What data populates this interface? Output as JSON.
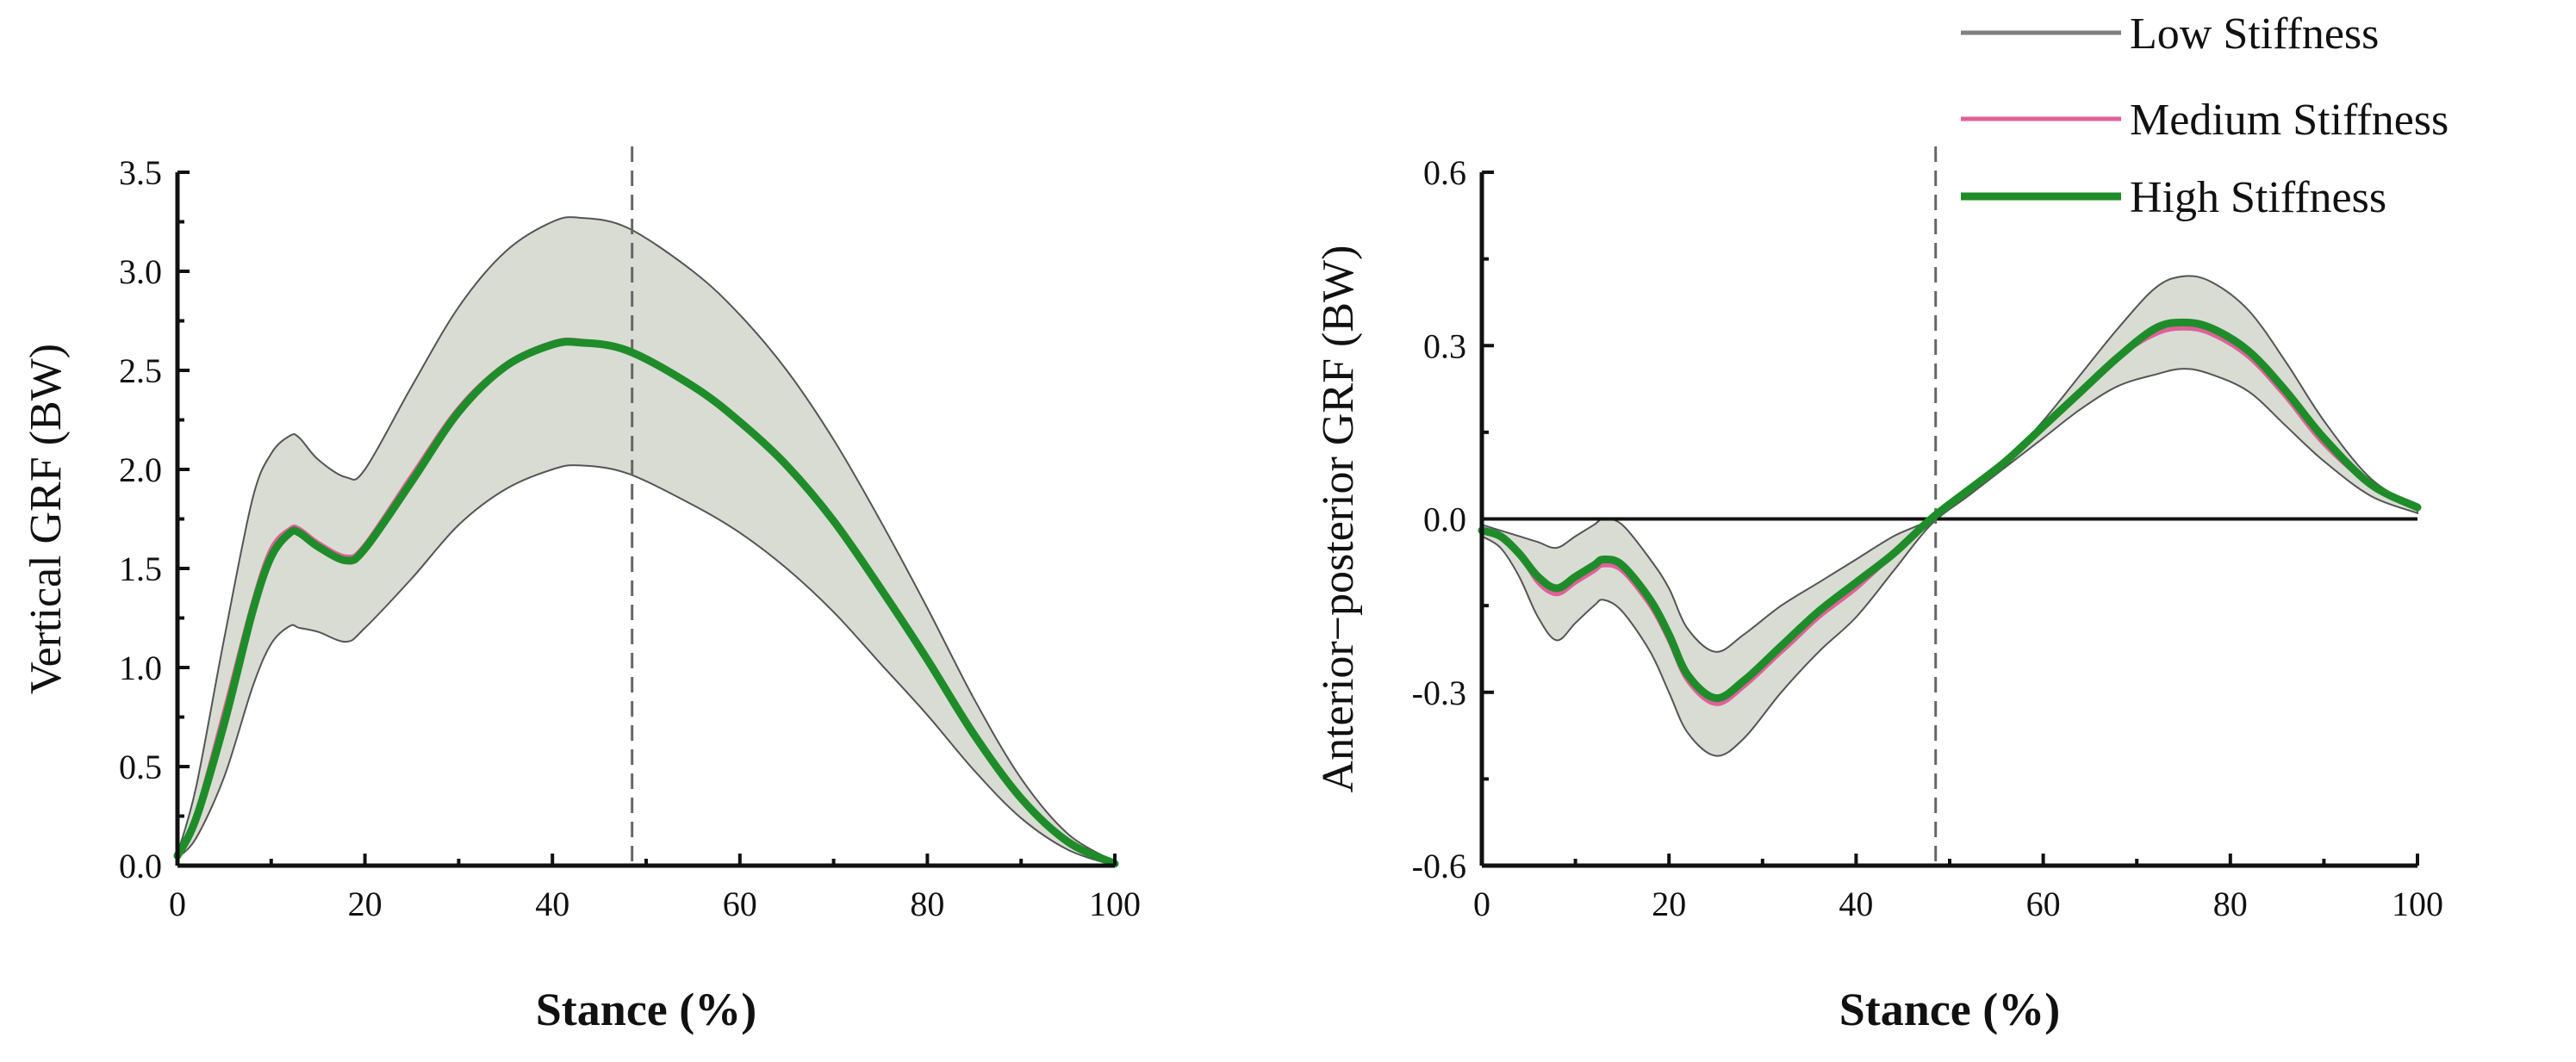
{
  "legend": {
    "items": [
      {
        "label": "Low Stiffness",
        "color": "#7f7f7f"
      },
      {
        "label": "Medium Stiffness",
        "color": "#e0609a"
      },
      {
        "label": "High Stiffness",
        "color": "#1f8c2a"
      }
    ]
  },
  "band_color": "#d9dcd3",
  "chart_data": [
    {
      "type": "line",
      "title": "",
      "xlabel": "Stance (%)",
      "ylabel": "Vertical GRF (BW)",
      "xlim": [
        0,
        100
      ],
      "ylim": [
        0,
        3.5
      ],
      "x_ticks": [
        "0",
        "20",
        "40",
        "60",
        "80",
        "100"
      ],
      "y_ticks": [
        "0.0",
        "0.5",
        "1.0",
        "1.5",
        "2.0",
        "2.5",
        "3.0",
        "3.5"
      ],
      "vline_x": 48.5,
      "x": [
        0,
        2,
        5,
        8,
        10,
        12,
        13,
        15,
        18,
        20,
        25,
        30,
        35,
        40,
        43,
        48,
        55,
        60,
        65,
        70,
        75,
        80,
        85,
        90,
        95,
        100
      ],
      "series": [
        {
          "name": "Low Stiffness",
          "values": [
            0.05,
            0.25,
            0.75,
            1.3,
            1.58,
            1.69,
            1.69,
            1.62,
            1.55,
            1.6,
            1.95,
            2.3,
            2.52,
            2.63,
            2.64,
            2.6,
            2.42,
            2.24,
            2.02,
            1.74,
            1.4,
            1.04,
            0.66,
            0.34,
            0.12,
            0.01
          ]
        },
        {
          "name": "Medium Stiffness",
          "values": [
            0.05,
            0.26,
            0.78,
            1.32,
            1.6,
            1.7,
            1.7,
            1.63,
            1.56,
            1.62,
            1.97,
            2.31,
            2.53,
            2.64,
            2.65,
            2.6,
            2.42,
            2.24,
            2.02,
            1.74,
            1.4,
            1.04,
            0.66,
            0.34,
            0.12,
            0.01
          ]
        },
        {
          "name": "High Stiffness",
          "values": [
            0.05,
            0.24,
            0.72,
            1.28,
            1.56,
            1.68,
            1.68,
            1.61,
            1.54,
            1.6,
            1.94,
            2.29,
            2.52,
            2.63,
            2.64,
            2.6,
            2.42,
            2.24,
            2.02,
            1.74,
            1.4,
            1.04,
            0.66,
            0.34,
            0.12,
            0.01
          ]
        }
      ],
      "band_upper": [
        0.06,
        0.4,
        1.15,
        1.85,
        2.08,
        2.17,
        2.16,
        2.05,
        1.96,
        2.0,
        2.42,
        2.82,
        3.1,
        3.25,
        3.27,
        3.22,
        3.0,
        2.78,
        2.5,
        2.15,
        1.74,
        1.3,
        0.84,
        0.44,
        0.16,
        0.02
      ],
      "band_lower": [
        0.04,
        0.14,
        0.45,
        0.9,
        1.12,
        1.21,
        1.2,
        1.18,
        1.13,
        1.2,
        1.45,
        1.72,
        1.9,
        2.0,
        2.02,
        1.98,
        1.82,
        1.68,
        1.5,
        1.28,
        1.02,
        0.76,
        0.48,
        0.24,
        0.08,
        0.0
      ]
    },
    {
      "type": "line",
      "title": "",
      "xlabel": "Stance (%)",
      "ylabel": "Anterior−posterior GRF (BW)",
      "xlim": [
        0,
        100
      ],
      "ylim": [
        -0.6,
        0.6
      ],
      "x_ticks": [
        "0",
        "20",
        "40",
        "60",
        "80",
        "100"
      ],
      "y_ticks": [
        "-0.6",
        "-0.3",
        "0.0",
        "0.3",
        "0.6"
      ],
      "vline_x": 48.5,
      "hline_y": 0,
      "x": [
        0,
        2,
        4,
        6,
        8,
        10,
        12,
        13,
        15,
        18,
        20,
        22,
        25,
        28,
        32,
        36,
        40,
        44,
        48,
        52,
        56,
        60,
        64,
        68,
        72,
        75,
        78,
        82,
        86,
        90,
        95,
        100
      ],
      "series": [
        {
          "name": "Low Stiffness",
          "values": [
            -0.02,
            -0.03,
            -0.06,
            -0.1,
            -0.12,
            -0.1,
            -0.08,
            -0.07,
            -0.08,
            -0.14,
            -0.2,
            -0.27,
            -0.31,
            -0.28,
            -0.23,
            -0.17,
            -0.12,
            -0.06,
            0.0,
            0.05,
            0.1,
            0.16,
            0.22,
            0.28,
            0.32,
            0.33,
            0.32,
            0.28,
            0.21,
            0.13,
            0.06,
            0.02
          ]
        },
        {
          "name": "Medium Stiffness",
          "values": [
            -0.02,
            -0.03,
            -0.06,
            -0.11,
            -0.13,
            -0.11,
            -0.09,
            -0.08,
            -0.09,
            -0.15,
            -0.21,
            -0.28,
            -0.32,
            -0.29,
            -0.23,
            -0.17,
            -0.12,
            -0.06,
            0.0,
            0.05,
            0.1,
            0.16,
            0.22,
            0.28,
            0.32,
            0.33,
            0.32,
            0.28,
            0.21,
            0.13,
            0.06,
            0.02
          ]
        },
        {
          "name": "High Stiffness",
          "values": [
            -0.02,
            -0.03,
            -0.06,
            -0.1,
            -0.12,
            -0.1,
            -0.08,
            -0.07,
            -0.08,
            -0.14,
            -0.2,
            -0.27,
            -0.31,
            -0.28,
            -0.22,
            -0.16,
            -0.11,
            -0.06,
            0.0,
            0.05,
            0.1,
            0.16,
            0.22,
            0.28,
            0.33,
            0.34,
            0.33,
            0.29,
            0.22,
            0.14,
            0.06,
            0.02
          ]
        }
      ],
      "band_upper": [
        -0.01,
        -0.02,
        -0.03,
        -0.04,
        -0.05,
        -0.03,
        -0.01,
        0.0,
        -0.01,
        -0.07,
        -0.12,
        -0.19,
        -0.23,
        -0.2,
        -0.15,
        -0.11,
        -0.07,
        -0.03,
        0.0,
        0.05,
        0.1,
        0.17,
        0.25,
        0.33,
        0.4,
        0.42,
        0.41,
        0.36,
        0.27,
        0.17,
        0.07,
        0.02
      ],
      "band_lower": [
        -0.03,
        -0.05,
        -0.1,
        -0.17,
        -0.21,
        -0.18,
        -0.15,
        -0.14,
        -0.16,
        -0.23,
        -0.3,
        -0.37,
        -0.41,
        -0.38,
        -0.3,
        -0.23,
        -0.17,
        -0.09,
        -0.01,
        0.04,
        0.09,
        0.14,
        0.19,
        0.23,
        0.25,
        0.26,
        0.25,
        0.22,
        0.16,
        0.1,
        0.04,
        0.01
      ]
    }
  ]
}
